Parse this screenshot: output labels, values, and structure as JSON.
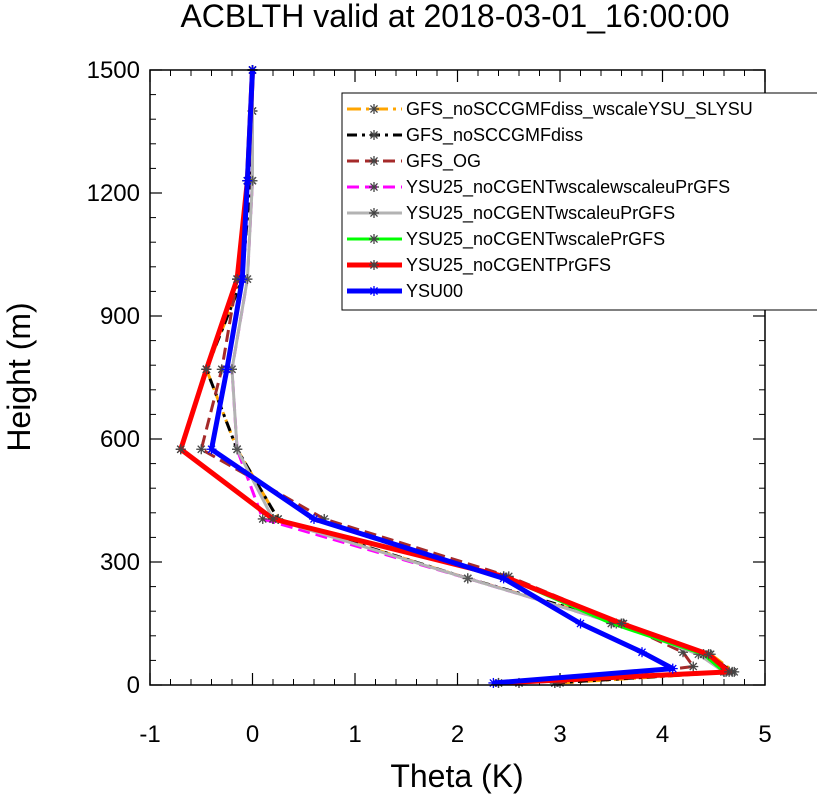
{
  "chart_data": {
    "type": "line",
    "title": "ACBLTH valid at 2018-03-01_16:00:00",
    "xlabel": "Theta (K)",
    "ylabel": "Height (m)",
    "xlim": [
      -1,
      5
    ],
    "ylim": [
      0,
      1500
    ],
    "xticks": [
      "-1",
      "0",
      "1",
      "2",
      "3",
      "4",
      "5"
    ],
    "yticks": [
      "0",
      "300",
      "600",
      "900",
      "1200",
      "1500"
    ],
    "legend_position": "top-right",
    "series": [
      {
        "name": "GFS_noSCCGMFdiss_wscaleYSU_SLYSU",
        "color": "#ffa500",
        "dash": "long-dash-dot",
        "width": 3,
        "x": [
          3.0,
          4.7,
          4.47,
          3.6,
          2.1,
          0.25,
          -0.15,
          -0.45,
          -0.1,
          -0.05,
          0.0,
          0.0
        ],
        "y": [
          5,
          32,
          75,
          150,
          260,
          405,
          575,
          770,
          990,
          1230,
          1400,
          1500
        ]
      },
      {
        "name": "GFS_noSCCGMFdiss",
        "color": "#000000",
        "dash": "dash-dot",
        "width": 3,
        "x": [
          2.95,
          4.68,
          4.45,
          3.62,
          2.1,
          0.25,
          -0.15,
          -0.45,
          -0.1,
          -0.02,
          0.0,
          0.0
        ],
        "y": [
          5,
          32,
          75,
          150,
          260,
          405,
          575,
          770,
          990,
          1230,
          1400,
          1500
        ]
      },
      {
        "name": "GFS_OG",
        "color": "#a52a2a",
        "dash": "dash",
        "width": 3,
        "x": [
          2.95,
          4.3,
          4.2,
          3.6,
          2.5,
          0.7,
          -0.5,
          -0.3,
          -0.15,
          -0.05,
          0.0
        ],
        "y": [
          5,
          45,
          80,
          150,
          265,
          405,
          575,
          770,
          990,
          1230,
          1500
        ]
      },
      {
        "name": "YSU25_noCGENTwscalewscaleuPrGFS",
        "color": "#ff00ff",
        "dash": "dash",
        "width": 3,
        "x": [
          2.6,
          4.62,
          4.4,
          3.55,
          2.1,
          0.1,
          -0.15,
          -0.2,
          -0.05,
          0.0,
          0.0
        ],
        "y": [
          5,
          32,
          75,
          150,
          260,
          405,
          575,
          770,
          990,
          1230,
          1500
        ]
      },
      {
        "name": "YSU25_noCGENTwscaleuPrGFS",
        "color": "#b3b3b3",
        "dash": "solid",
        "width": 3,
        "x": [
          2.6,
          4.6,
          4.35,
          3.55,
          2.1,
          0.2,
          -0.15,
          -0.2,
          -0.05,
          0.0,
          0.0
        ],
        "y": [
          5,
          32,
          75,
          150,
          260,
          405,
          575,
          770,
          990,
          1230,
          1500
        ]
      },
      {
        "name": "YSU25_noCGENTwscalePrGFS",
        "color": "#00ff00",
        "dash": "solid",
        "width": 3,
        "x": [
          2.4,
          4.6,
          4.4,
          3.5,
          2.45,
          0.2,
          -0.7,
          -0.45,
          -0.15,
          -0.05,
          0.0
        ],
        "y": [
          5,
          32,
          75,
          150,
          265,
          405,
          575,
          770,
          990,
          1230,
          1500
        ]
      },
      {
        "name": "YSU25_noCGENTPrGFS",
        "color": "#ff0000",
        "dash": "solid",
        "width": 5,
        "x": [
          2.4,
          4.65,
          4.45,
          3.6,
          2.45,
          0.2,
          -0.7,
          -0.45,
          -0.15,
          -0.05,
          0.0
        ],
        "y": [
          5,
          32,
          75,
          150,
          265,
          405,
          575,
          770,
          990,
          1230,
          1500
        ]
      },
      {
        "name": "YSU00",
        "color": "#0000ff",
        "dash": "solid",
        "width": 5,
        "x": [
          2.35,
          4.1,
          3.8,
          3.2,
          2.45,
          0.6,
          -0.4,
          -0.25,
          -0.1,
          -0.05,
          0.0
        ],
        "y": [
          5,
          40,
          80,
          150,
          260,
          405,
          575,
          770,
          990,
          1230,
          1500
        ]
      }
    ]
  }
}
